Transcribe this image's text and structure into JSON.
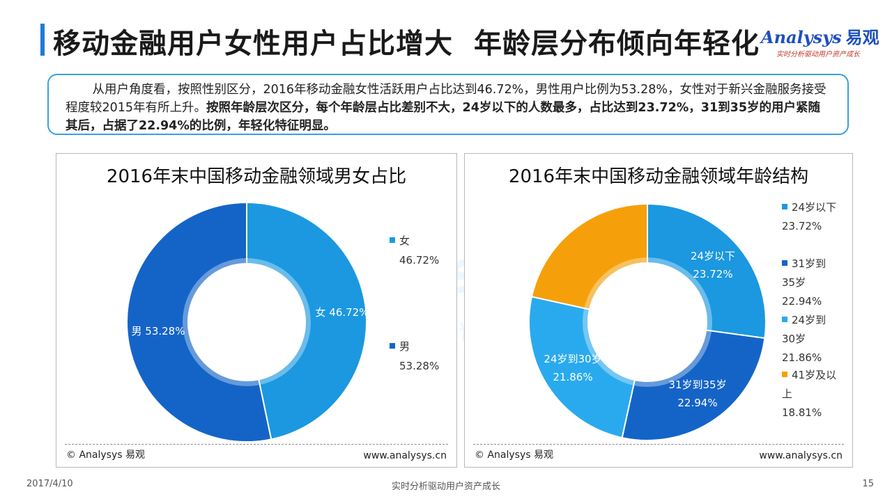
{
  "header": {
    "title_part1": "移动金融用户女性用户占比增大",
    "title_part2": "年龄层分布倾向年轻化",
    "logo_brand": "Analysys",
    "logo_brand_cn": "易观",
    "logo_slogan": "实时分析驱动用户资产成长"
  },
  "summary": {
    "normal": "从用户角度看，按照性别区分，2016年移动金融女性活跃用户占比达到46.72%，男性用户比例为53.28%，女性对于新兴金融服务接受程度较2015年有所上升。",
    "bold": "按照年龄层次区分，每个年龄层占比差别不大，24岁以下的人数最多，占比达到23.72%，31到35岁的用户紧随其后，占据了22.94%的比例，年轻化特征明显。"
  },
  "chart_data": [
    {
      "type": "pie",
      "title": "2016年末中国移动金融领域男女占比",
      "categories": [
        "女",
        "男"
      ],
      "values": [
        46.72,
        53.28
      ],
      "data_labels": [
        "女 46.72%",
        "男 53.28%"
      ],
      "legend_values": [
        "46.72%",
        "53.28%"
      ],
      "colors": [
        "#1b98e0",
        "#1464c8"
      ],
      "legend_position": "right",
      "source": "© Analysys 易观",
      "site": "www.analysys.cn"
    },
    {
      "type": "pie",
      "title": "2016年末中国移动金融领域年龄结构",
      "categories": [
        "24岁以下",
        "31岁到35岁",
        "24岁到30岁",
        "41岁及以上"
      ],
      "values": [
        23.72,
        22.94,
        21.86,
        18.81
      ],
      "data_labels_name": [
        "24岁以下",
        "31岁到35岁",
        "24岁到30岁",
        ""
      ],
      "data_labels_value": [
        "23.72%",
        "22.94%",
        "21.86%",
        ""
      ],
      "legend_lines": [
        [
          "24岁以下"
        ],
        [
          "31岁到",
          "35岁"
        ],
        [
          "24岁到",
          "30岁"
        ],
        [
          "41岁及以",
          "上"
        ]
      ],
      "legend_values": [
        "23.72%",
        "22.94%",
        "21.86%",
        "18.81%"
      ],
      "colors": [
        "#1b98e0",
        "#1464c8",
        "#2aaaee",
        "#f5a00a"
      ],
      "legend_position": "right",
      "source": "© Analysys 易观",
      "site": "www.analysys.cn"
    }
  ],
  "footer": {
    "date": "2017/4/10",
    "slogan": "实时分析驱动用户资产成长",
    "page": "15"
  },
  "watermark": {
    "brand": "Analysys 易观",
    "slogan": "实时分析驱动用户资产成长"
  }
}
